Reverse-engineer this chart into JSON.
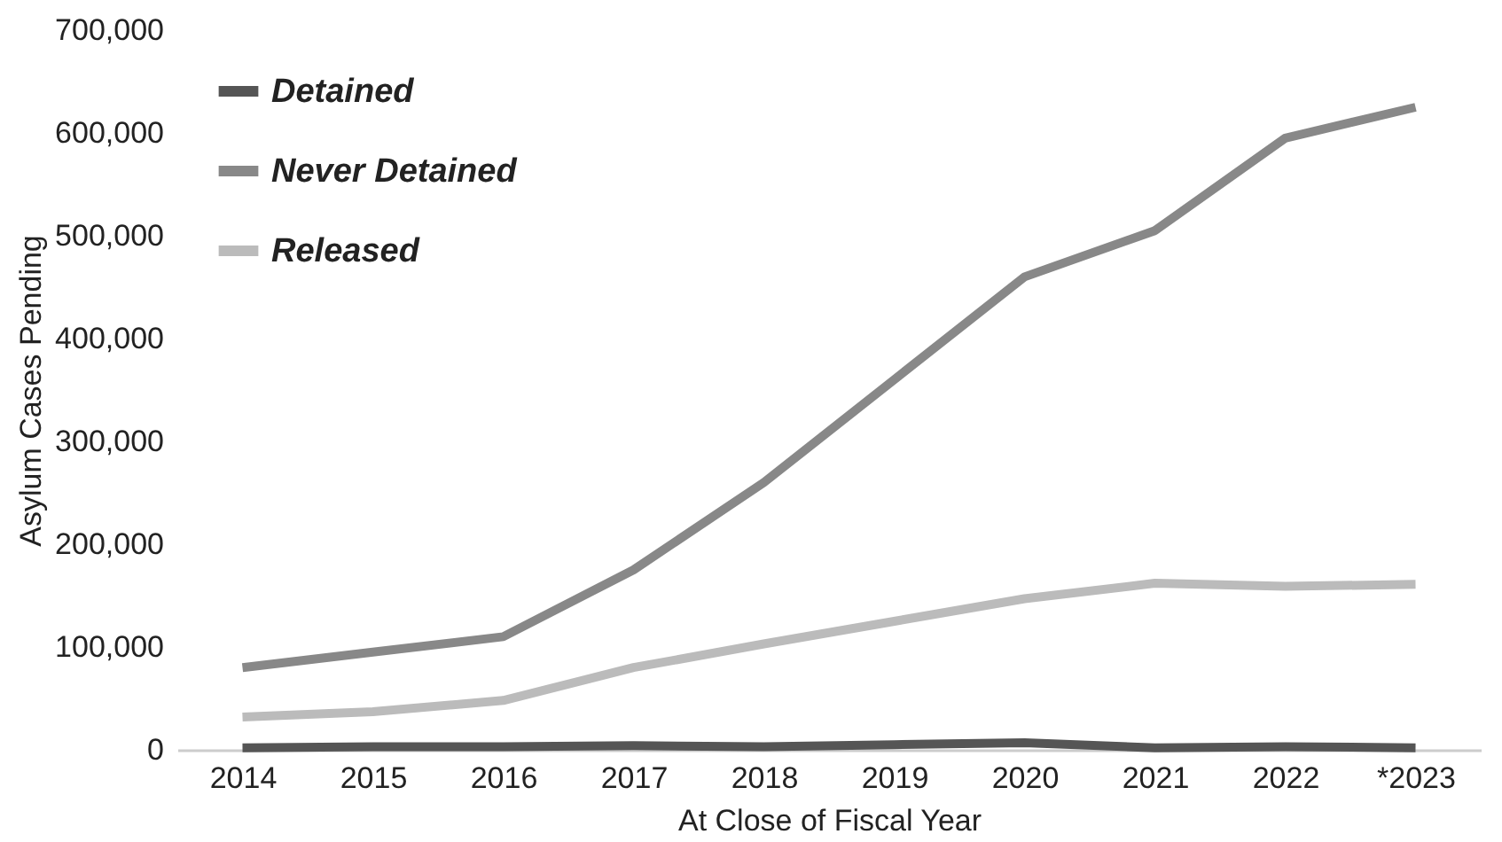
{
  "chart_data": {
    "type": "line",
    "xlabel": "At Close of Fiscal Year",
    "ylabel": "Asylum Cases Pending",
    "categories": [
      "2014",
      "2015",
      "2016",
      "2017",
      "2018",
      "2019",
      "2020",
      "2021",
      "2022",
      "*2023"
    ],
    "series": [
      {
        "name": "Detained",
        "color": "#555555",
        "values": [
          2000,
          3000,
          3000,
          4000,
          3000,
          5000,
          7000,
          2000,
          3000,
          2000
        ]
      },
      {
        "name": "Never Detained",
        "color": "#888888",
        "values": [
          80000,
          95000,
          110000,
          175000,
          260000,
          360000,
          460000,
          505000,
          595000,
          625000
        ]
      },
      {
        "name": "Released",
        "color": "#bbbbbb",
        "values": [
          32000,
          37000,
          48000,
          80000,
          103000,
          125000,
          147000,
          162000,
          159000,
          161000
        ]
      }
    ],
    "ylim": [
      0,
      700000
    ],
    "yticks": [
      0,
      {
        "value": 100000,
        "label": "100,000"
      },
      {
        "value": 200000,
        "label": "200,000"
      },
      {
        "value": 300000,
        "label": "300,000"
      },
      {
        "value": 400000,
        "label": "400,000"
      },
      {
        "value": 500000,
        "label": "500,000"
      },
      {
        "value": 600000,
        "label": "600,000"
      },
      {
        "value": 700000,
        "label": "700,000"
      }
    ],
    "grid": false,
    "legend": "top left",
    "marker": "none",
    "line_style": "solid"
  }
}
